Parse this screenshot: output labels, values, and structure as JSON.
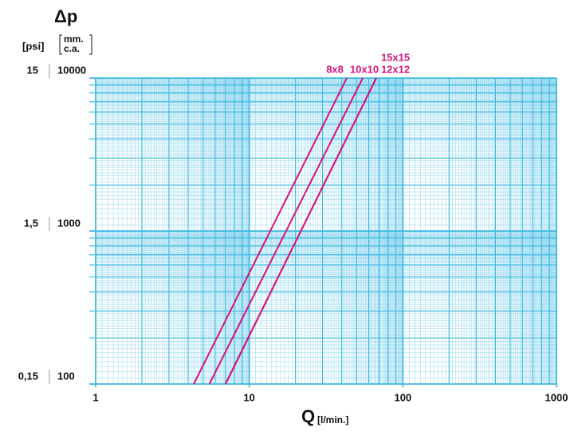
{
  "chart_data": {
    "type": "line",
    "title": "Δp",
    "y_header": "[psi]",
    "y2_header_1": "mm.",
    "y2_header_2": "c.a.",
    "x_label": "Q",
    "x_unit": "[l/min.]",
    "x": [
      4.35,
      43.1
    ],
    "series": [
      {
        "name": "8x8",
        "color": "#d4147c",
        "x": [
          4.35,
          43.1
        ],
        "values": [
          100,
          10000
        ]
      },
      {
        "name": "10x10",
        "color": "#d4147c",
        "x": [
          5.5,
          54.8
        ],
        "values": [
          100,
          10000
        ]
      },
      {
        "name": "12x12",
        "color": "#d4147c",
        "x": [
          7.0,
          67.1
        ],
        "values": [
          100,
          10000
        ]
      },
      {
        "name": "15x15",
        "color": "#d4147c",
        "x": [
          7.0,
          67.1
        ],
        "values": [
          100,
          10000
        ]
      }
    ],
    "xlim": [
      1,
      1000
    ],
    "xticks": [
      1,
      10,
      100,
      1000
    ],
    "xlog": true,
    "ylim": [
      100,
      10000
    ],
    "yticks": [
      100,
      1000,
      10000
    ],
    "ylog": true,
    "y2lim": [
      0.15,
      15
    ],
    "y2ticks": [
      {
        "value": 0.15,
        "label": "0,15"
      },
      {
        "value": 1.5,
        "label": "1,5"
      },
      15
    ],
    "grid": true,
    "grid_color": "#3fb9e3"
  }
}
